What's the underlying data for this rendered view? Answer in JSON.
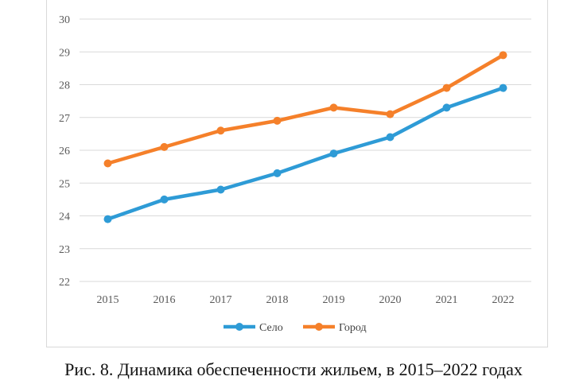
{
  "chart_data": {
    "type": "line",
    "title": "",
    "xlabel": "",
    "ylabel": "",
    "categories": [
      "2015",
      "2016",
      "2017",
      "2018",
      "2019",
      "2020",
      "2021",
      "2022"
    ],
    "ylim": [
      22,
      30
    ],
    "yticks": [
      22,
      23,
      24,
      25,
      26,
      27,
      28,
      29,
      30
    ],
    "grid": true,
    "legend_position": "bottom",
    "series": [
      {
        "name": "Село",
        "color": "#2e9bd6",
        "values": [
          23.9,
          24.5,
          24.8,
          25.3,
          25.9,
          26.4,
          27.3,
          27.9
        ]
      },
      {
        "name": "Город",
        "color": "#f5802a",
        "values": [
          25.6,
          26.1,
          26.6,
          26.9,
          27.3,
          27.1,
          27.9,
          28.9
        ]
      }
    ]
  },
  "caption": "Рис. 8. Динамика обеспеченности жильем, в 2015–2022 годах"
}
